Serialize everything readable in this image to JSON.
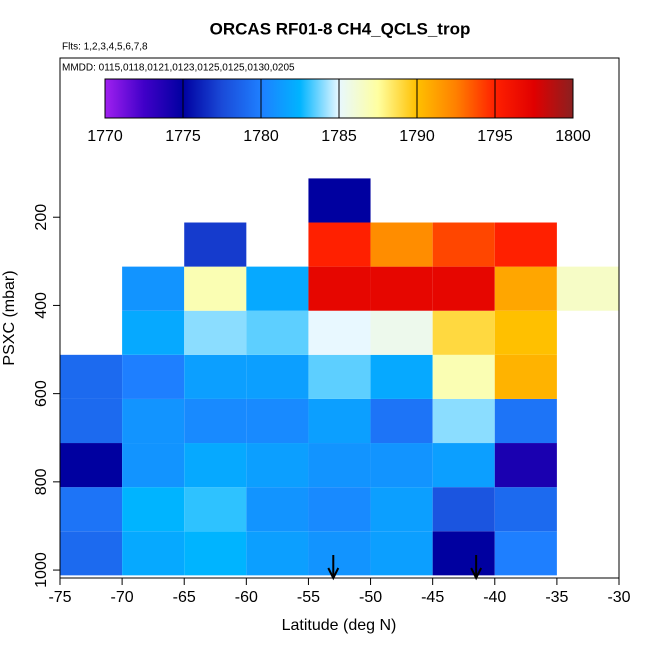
{
  "chart_data": {
    "type": "heatmap",
    "title": "ORCAS RF01-8 CH4_QCLS_trop",
    "subtitle": "Flts: 1,2,3,4,5,6,7,8",
    "annotation": "MMDD: 0115,0118,0121,0123,0125,0125,0130,0205",
    "x_label": "Latitude (deg N)",
    "y_label": "PSXC (mbar)",
    "xlim": [
      -75,
      -30
    ],
    "xticks": [
      -75,
      -70,
      -65,
      -60,
      -55,
      -50,
      -45,
      -40,
      -35,
      -30
    ],
    "ylim": [
      1018,
      -161
    ],
    "yticks": [
      200,
      400,
      600,
      800,
      1000
    ],
    "x_bins": [
      -75,
      -70,
      -65,
      -60,
      -55,
      -50,
      -45,
      -40,
      -35,
      -30
    ],
    "y_bins": [
      1012,
      912,
      812,
      712,
      612,
      512,
      412,
      312,
      212,
      112
    ],
    "values": [
      [
        1779,
        1782,
        1782.5,
        1781.5,
        1781,
        1781.5,
        1775,
        1780,
        null
      ],
      [
        1779.5,
        1782.5,
        1783,
        1781,
        1780.5,
        1781.5,
        1778,
        1779,
        null
      ],
      [
        1775,
        1781,
        1782,
        1781.5,
        1781,
        1781,
        1781.5,
        1774,
        null
      ],
      [
        1779,
        1781,
        1780.5,
        1780.5,
        1781.5,
        1779.5,
        1784,
        1779.5,
        null
      ],
      [
        1779,
        1780,
        1781.5,
        1781.5,
        1783.5,
        1782,
        1787,
        1790.5,
        null
      ],
      [
        null,
        1782,
        1784,
        1783.5,
        1785,
        1785.5,
        1789,
        1790,
        null
      ],
      [
        null,
        1781,
        1787,
        1782,
        1797,
        1797,
        1797,
        1791,
        1786.5
      ],
      [
        null,
        null,
        1777,
        null,
        1795,
        1792,
        1794,
        1795,
        null
      ],
      [
        null,
        null,
        null,
        null,
        1775,
        null,
        null,
        null,
        null
      ]
    ],
    "clim": [
      1770,
      1800
    ],
    "colorbar_ticks": [
      1770,
      1775,
      1780,
      1785,
      1790,
      1795,
      1800
    ],
    "colormap": [
      "#a020f0",
      "#4000c8",
      "#0000a0",
      "#1a4ad8",
      "#1e7fff",
      "#00b4ff",
      "#e8f8ff",
      "#ffffa0",
      "#ffc000",
      "#ff8000",
      "#ff2000",
      "#e00000",
      "#8b2020"
    ],
    "arrows_x": [
      -53,
      -41.5
    ]
  }
}
